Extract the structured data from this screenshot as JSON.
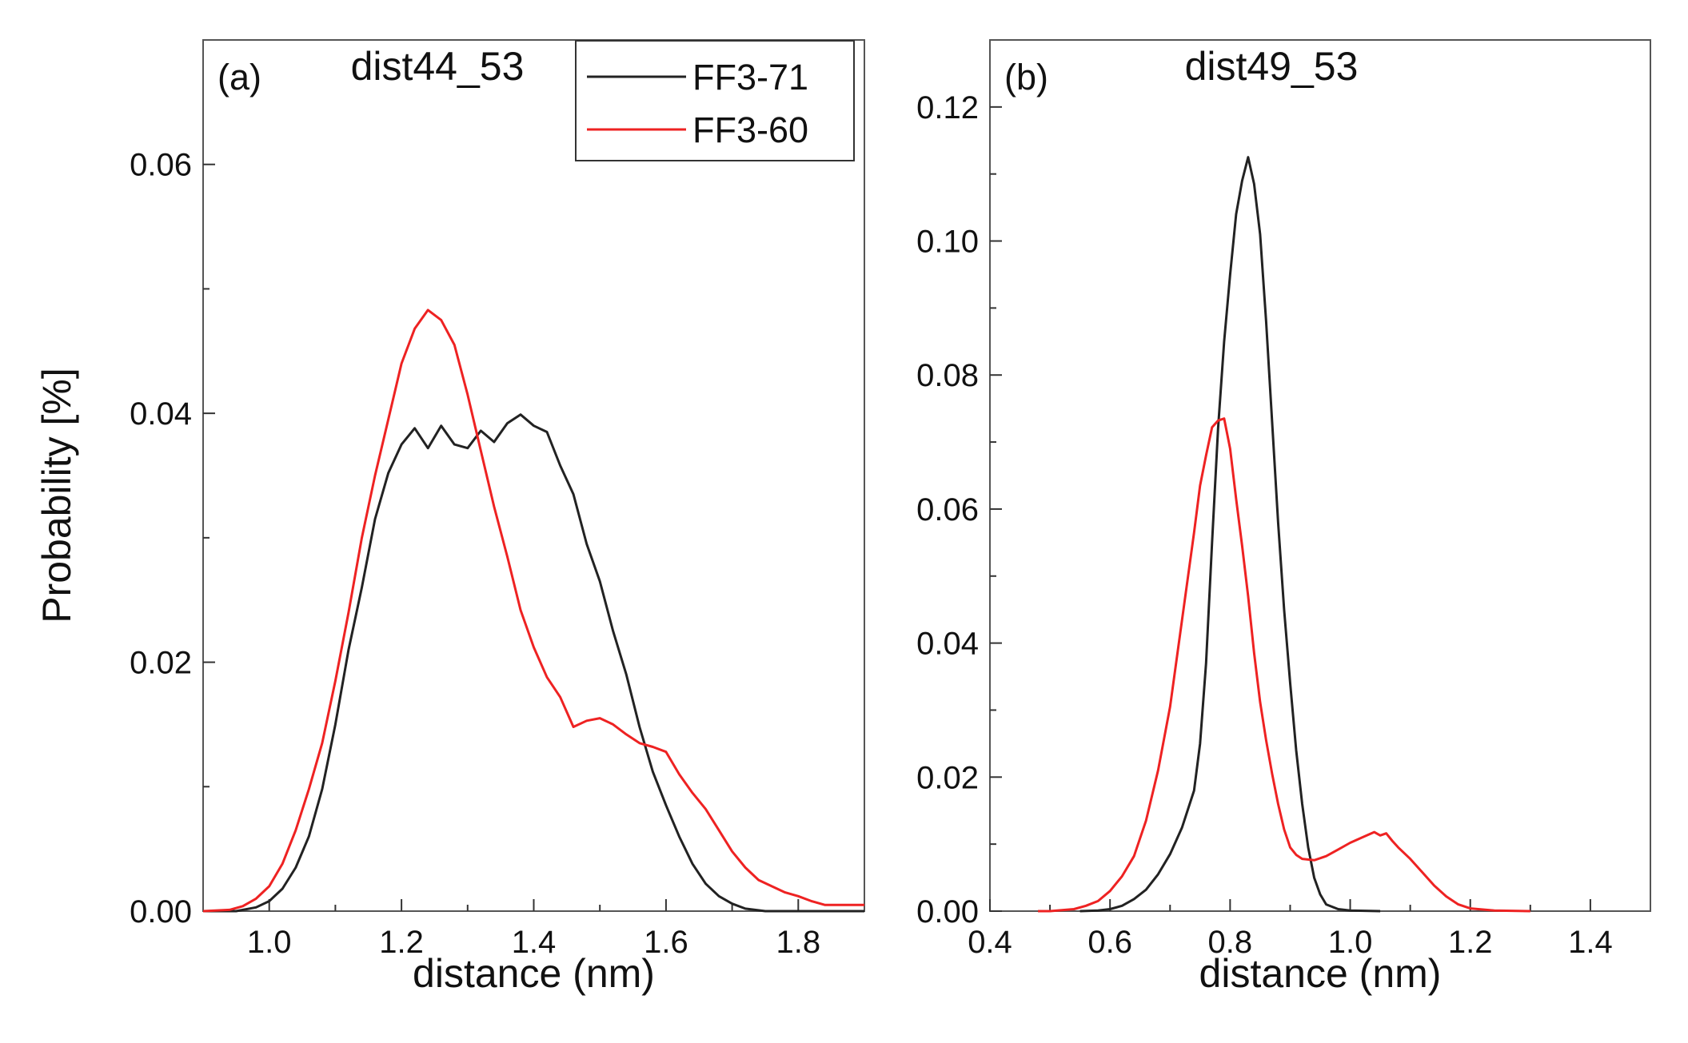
{
  "figure": {
    "ylabel": "Probability [%]"
  },
  "chart_data": [
    {
      "type": "line",
      "panel_label": "(a)",
      "title": "dist44_53",
      "xlabel": "distance (nm)",
      "ylabel": "Probability [%]",
      "xlim": [
        0.9,
        1.9
      ],
      "ylim": [
        0.0,
        0.07
      ],
      "x_ticks": [
        1.0,
        1.2,
        1.4,
        1.6,
        1.8
      ],
      "x_tick_labels": [
        "1.0",
        "1.2",
        "1.4",
        "1.6",
        "1.8"
      ],
      "x_minor_ticks": [
        1.1,
        1.3,
        1.5,
        1.7
      ],
      "y_ticks": [
        0.0,
        0.02,
        0.04,
        0.06
      ],
      "y_tick_labels": [
        "0.00",
        "0.02",
        "0.04",
        "0.06"
      ],
      "y_minor_ticks": [
        0.01,
        0.03,
        0.05
      ],
      "legend": {
        "position": "top-right"
      },
      "series": [
        {
          "name": "FF3-71",
          "color": "#222222",
          "points": [
            [
              0.9,
              0.0
            ],
            [
              0.95,
              0.0
            ],
            [
              0.98,
              0.0003
            ],
            [
              1.0,
              0.0008
            ],
            [
              1.02,
              0.0018
            ],
            [
              1.04,
              0.0035
            ],
            [
              1.06,
              0.006
            ],
            [
              1.08,
              0.0098
            ],
            [
              1.1,
              0.015
            ],
            [
              1.12,
              0.021
            ],
            [
              1.14,
              0.026
            ],
            [
              1.16,
              0.0315
            ],
            [
              1.18,
              0.0352
            ],
            [
              1.2,
              0.0375
            ],
            [
              1.22,
              0.0388
            ],
            [
              1.24,
              0.0372
            ],
            [
              1.26,
              0.039
            ],
            [
              1.28,
              0.0375
            ],
            [
              1.3,
              0.0372
            ],
            [
              1.32,
              0.0386
            ],
            [
              1.34,
              0.0377
            ],
            [
              1.36,
              0.0392
            ],
            [
              1.38,
              0.0399
            ],
            [
              1.4,
              0.039
            ],
            [
              1.42,
              0.0385
            ],
            [
              1.44,
              0.0358
            ],
            [
              1.46,
              0.0335
            ],
            [
              1.48,
              0.0295
            ],
            [
              1.5,
              0.0265
            ],
            [
              1.52,
              0.0225
            ],
            [
              1.54,
              0.019
            ],
            [
              1.56,
              0.0148
            ],
            [
              1.58,
              0.0112
            ],
            [
              1.6,
              0.0085
            ],
            [
              1.62,
              0.006
            ],
            [
              1.64,
              0.0038
            ],
            [
              1.66,
              0.0022
            ],
            [
              1.68,
              0.0012
            ],
            [
              1.7,
              0.0006
            ],
            [
              1.72,
              0.0002
            ],
            [
              1.75,
              0.0
            ],
            [
              1.8,
              0.0
            ],
            [
              1.9,
              0.0
            ]
          ]
        },
        {
          "name": "FF3-60",
          "color": "#ee2222",
          "points": [
            [
              0.9,
              0.0
            ],
            [
              0.94,
              0.0001
            ],
            [
              0.96,
              0.0004
            ],
            [
              0.98,
              0.001
            ],
            [
              1.0,
              0.002
            ],
            [
              1.02,
              0.0038
            ],
            [
              1.04,
              0.0065
            ],
            [
              1.06,
              0.0098
            ],
            [
              1.08,
              0.0135
            ],
            [
              1.1,
              0.0185
            ],
            [
              1.12,
              0.024
            ],
            [
              1.14,
              0.03
            ],
            [
              1.16,
              0.035
            ],
            [
              1.18,
              0.0395
            ],
            [
              1.2,
              0.044
            ],
            [
              1.22,
              0.0468
            ],
            [
              1.24,
              0.0483
            ],
            [
              1.26,
              0.0475
            ],
            [
              1.28,
              0.0455
            ],
            [
              1.3,
              0.0415
            ],
            [
              1.32,
              0.037
            ],
            [
              1.34,
              0.0325
            ],
            [
              1.36,
              0.0285
            ],
            [
              1.38,
              0.0242
            ],
            [
              1.4,
              0.0212
            ],
            [
              1.42,
              0.0188
            ],
            [
              1.44,
              0.0172
            ],
            [
              1.46,
              0.0148
            ],
            [
              1.48,
              0.0153
            ],
            [
              1.5,
              0.0155
            ],
            [
              1.52,
              0.015
            ],
            [
              1.54,
              0.0142
            ],
            [
              1.56,
              0.0135
            ],
            [
              1.58,
              0.0132
            ],
            [
              1.6,
              0.0128
            ],
            [
              1.62,
              0.011
            ],
            [
              1.64,
              0.0095
            ],
            [
              1.66,
              0.0082
            ],
            [
              1.68,
              0.0065
            ],
            [
              1.7,
              0.0048
            ],
            [
              1.72,
              0.0035
            ],
            [
              1.74,
              0.0025
            ],
            [
              1.76,
              0.002
            ],
            [
              1.78,
              0.0015
            ],
            [
              1.8,
              0.0012
            ],
            [
              1.82,
              0.0008
            ],
            [
              1.84,
              0.0005
            ],
            [
              1.9,
              0.0005
            ]
          ]
        }
      ]
    },
    {
      "type": "line",
      "panel_label": "(b)",
      "title": "dist49_53",
      "xlabel": "distance (nm)",
      "ylabel": "",
      "xlim": [
        0.4,
        1.5
      ],
      "ylim": [
        0.0,
        0.13
      ],
      "x_ticks": [
        0.4,
        0.6,
        0.8,
        1.0,
        1.2,
        1.4
      ],
      "x_tick_labels": [
        "0.4",
        "0.6",
        "0.8",
        "1.0",
        "1.2",
        "1.4"
      ],
      "x_minor_ticks": [
        0.5,
        0.7,
        0.9,
        1.1,
        1.3
      ],
      "y_ticks": [
        0.0,
        0.02,
        0.04,
        0.06,
        0.08,
        0.1,
        0.12
      ],
      "y_tick_labels": [
        "0.00",
        "0.02",
        "0.04",
        "0.06",
        "0.08",
        "0.10",
        "0.12"
      ],
      "y_minor_ticks": [
        0.01,
        0.03,
        0.05,
        0.07,
        0.09,
        0.11
      ],
      "legend": {
        "position": "none"
      },
      "series": [
        {
          "name": "FF3-71",
          "color": "#222222",
          "points": [
            [
              0.55,
              0.0
            ],
            [
              0.58,
              0.0001
            ],
            [
              0.6,
              0.0003
            ],
            [
              0.62,
              0.0008
            ],
            [
              0.64,
              0.0018
            ],
            [
              0.66,
              0.0032
            ],
            [
              0.68,
              0.0055
            ],
            [
              0.7,
              0.0085
            ],
            [
              0.72,
              0.0125
            ],
            [
              0.74,
              0.018
            ],
            [
              0.75,
              0.025
            ],
            [
              0.76,
              0.037
            ],
            [
              0.77,
              0.055
            ],
            [
              0.78,
              0.072
            ],
            [
              0.79,
              0.085
            ],
            [
              0.8,
              0.095
            ],
            [
              0.81,
              0.104
            ],
            [
              0.82,
              0.109
            ],
            [
              0.83,
              0.1125
            ],
            [
              0.84,
              0.1085
            ],
            [
              0.85,
              0.101
            ],
            [
              0.86,
              0.088
            ],
            [
              0.87,
              0.073
            ],
            [
              0.88,
              0.058
            ],
            [
              0.89,
              0.045
            ],
            [
              0.9,
              0.034
            ],
            [
              0.91,
              0.024
            ],
            [
              0.92,
              0.016
            ],
            [
              0.93,
              0.0095
            ],
            [
              0.94,
              0.005
            ],
            [
              0.95,
              0.0025
            ],
            [
              0.96,
              0.001
            ],
            [
              0.98,
              0.0003
            ],
            [
              1.0,
              0.0001
            ],
            [
              1.05,
              0.0
            ]
          ]
        },
        {
          "name": "FF3-60",
          "color": "#ee2222",
          "points": [
            [
              0.48,
              0.0
            ],
            [
              0.5,
              0.0
            ],
            [
              0.54,
              0.0003
            ],
            [
              0.56,
              0.0008
            ],
            [
              0.58,
              0.0015
            ],
            [
              0.6,
              0.003
            ],
            [
              0.62,
              0.0052
            ],
            [
              0.64,
              0.0082
            ],
            [
              0.66,
              0.0135
            ],
            [
              0.68,
              0.021
            ],
            [
              0.7,
              0.0305
            ],
            [
              0.72,
              0.0435
            ],
            [
              0.74,
              0.0565
            ],
            [
              0.75,
              0.0635
            ],
            [
              0.76,
              0.068
            ],
            [
              0.77,
              0.0722
            ],
            [
              0.78,
              0.0732
            ],
            [
              0.79,
              0.0735
            ],
            [
              0.8,
              0.069
            ],
            [
              0.81,
              0.0615
            ],
            [
              0.82,
              0.0545
            ],
            [
              0.83,
              0.047
            ],
            [
              0.84,
              0.0385
            ],
            [
              0.85,
              0.0312
            ],
            [
              0.86,
              0.0255
            ],
            [
              0.87,
              0.0205
            ],
            [
              0.88,
              0.016
            ],
            [
              0.89,
              0.0122
            ],
            [
              0.9,
              0.0095
            ],
            [
              0.91,
              0.0084
            ],
            [
              0.92,
              0.0078
            ],
            [
              0.94,
              0.0076
            ],
            [
              0.96,
              0.0082
            ],
            [
              0.98,
              0.0092
            ],
            [
              1.0,
              0.0102
            ],
            [
              1.02,
              0.011
            ],
            [
              1.04,
              0.0118
            ],
            [
              1.05,
              0.0113
            ],
            [
              1.06,
              0.0116
            ],
            [
              1.07,
              0.0105
            ],
            [
              1.08,
              0.0095
            ],
            [
              1.1,
              0.0078
            ],
            [
              1.12,
              0.0058
            ],
            [
              1.14,
              0.0038
            ],
            [
              1.16,
              0.0022
            ],
            [
              1.18,
              0.001
            ],
            [
              1.2,
              0.0004
            ],
            [
              1.24,
              0.0001
            ],
            [
              1.3,
              0.0
            ]
          ]
        }
      ]
    }
  ]
}
